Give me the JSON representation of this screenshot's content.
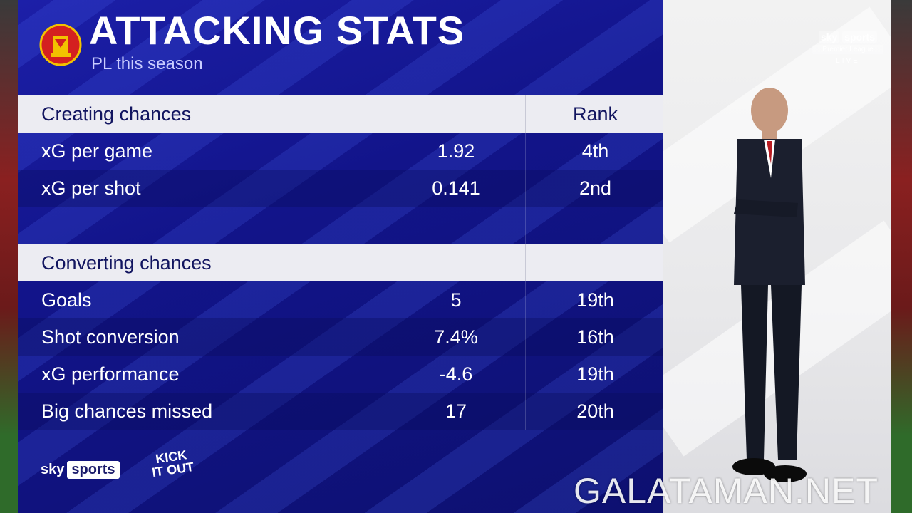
{
  "header": {
    "title": "ATTACKING STATS",
    "subtitle": "PL this season"
  },
  "sections": [
    {
      "title": "Creating chances",
      "rank_header": "Rank",
      "rows": [
        {
          "label": "xG per game",
          "value": "1.92",
          "rank": "4th"
        },
        {
          "label": "xG per shot",
          "value": "0.141",
          "rank": "2nd"
        }
      ]
    },
    {
      "title": "Converting chances",
      "rank_header": "",
      "rows": [
        {
          "label": "Goals",
          "value": "5",
          "rank": "19th"
        },
        {
          "label": "Shot conversion",
          "value": "7.4%",
          "rank": "16th"
        },
        {
          "label": "xG performance",
          "value": "-4.6",
          "rank": "19th"
        },
        {
          "label": "Big chances missed",
          "value": "17",
          "rank": "20th"
        }
      ]
    }
  ],
  "footer": {
    "sky": "sky",
    "sports": "sports",
    "kick_it_out": "KICK IT OUT"
  },
  "broadcast": {
    "brand_sky": "sky",
    "brand_sports": "sports",
    "league": "Premier League",
    "live": "LIVE"
  },
  "watermark": "GALATAMAN.NET",
  "colors": {
    "panel_blue": "#12148a",
    "header_bg": "#ececf2",
    "header_text": "#121560",
    "crest_red": "#d42020",
    "crest_gold": "#f2c200"
  }
}
